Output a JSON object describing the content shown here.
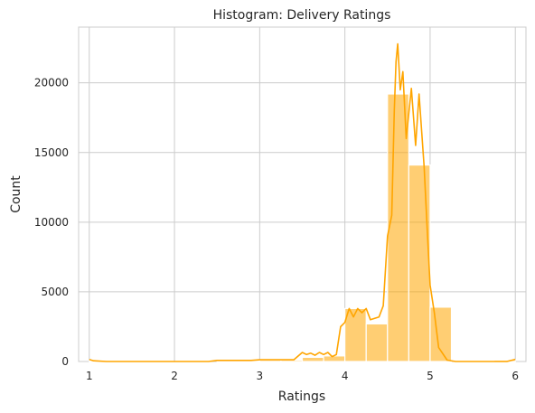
{
  "chart_data": {
    "type": "bar",
    "title": "Histogram: Delivery Ratings",
    "xlabel": "Ratings",
    "ylabel": "Count",
    "xlim": [
      0.875,
      6.125
    ],
    "ylim": [
      0,
      24000
    ],
    "xticks": [
      1,
      2,
      3,
      4,
      5,
      6
    ],
    "yticks": [
      0,
      5000,
      10000,
      15000,
      20000
    ],
    "grid": true,
    "bar_color": "#ffa500",
    "kde_color": "#ffa500",
    "bins": [
      {
        "x0": 1.0,
        "x1": 1.25,
        "count": 60
      },
      {
        "x0": 1.25,
        "x1": 1.5,
        "count": 0
      },
      {
        "x0": 1.5,
        "x1": 1.75,
        "count": 0
      },
      {
        "x0": 1.75,
        "x1": 2.0,
        "count": 0
      },
      {
        "x0": 2.0,
        "x1": 2.25,
        "count": 0
      },
      {
        "x0": 2.25,
        "x1": 2.5,
        "count": 0
      },
      {
        "x0": 2.5,
        "x1": 2.75,
        "count": 80
      },
      {
        "x0": 2.75,
        "x1": 3.0,
        "count": 80
      },
      {
        "x0": 3.0,
        "x1": 3.25,
        "count": 100
      },
      {
        "x0": 3.25,
        "x1": 3.5,
        "count": 100
      },
      {
        "x0": 3.5,
        "x1": 3.75,
        "count": 300
      },
      {
        "x0": 3.75,
        "x1": 4.0,
        "count": 400
      },
      {
        "x0": 4.0,
        "x1": 4.25,
        "count": 3800
      },
      {
        "x0": 4.25,
        "x1": 4.5,
        "count": 2700
      },
      {
        "x0": 4.5,
        "x1": 4.75,
        "count": 19200
      },
      {
        "x0": 4.75,
        "x1": 5.0,
        "count": 14100
      },
      {
        "x0": 5.0,
        "x1": 5.25,
        "count": 3900
      },
      {
        "x0": 5.25,
        "x1": 5.5,
        "count": 0
      },
      {
        "x0": 5.5,
        "x1": 5.75,
        "count": 0
      },
      {
        "x0": 5.75,
        "x1": 6.0,
        "count": 100
      }
    ],
    "kde": [
      [
        1.0,
        150
      ],
      [
        1.05,
        50
      ],
      [
        1.2,
        0
      ],
      [
        2.4,
        0
      ],
      [
        2.5,
        80
      ],
      [
        2.9,
        80
      ],
      [
        3.0,
        120
      ],
      [
        3.4,
        120
      ],
      [
        3.5,
        650
      ],
      [
        3.55,
        500
      ],
      [
        3.6,
        600
      ],
      [
        3.65,
        450
      ],
      [
        3.7,
        650
      ],
      [
        3.75,
        500
      ],
      [
        3.8,
        650
      ],
      [
        3.85,
        350
      ],
      [
        3.9,
        500
      ],
      [
        3.95,
        2500
      ],
      [
        4.0,
        2800
      ],
      [
        4.05,
        3800
      ],
      [
        4.1,
        3200
      ],
      [
        4.15,
        3800
      ],
      [
        4.2,
        3500
      ],
      [
        4.25,
        3800
      ],
      [
        4.3,
        3000
      ],
      [
        4.4,
        3200
      ],
      [
        4.45,
        4000
      ],
      [
        4.5,
        9000
      ],
      [
        4.55,
        10500
      ],
      [
        4.58,
        18000
      ],
      [
        4.6,
        21500
      ],
      [
        4.62,
        22800
      ],
      [
        4.65,
        19500
      ],
      [
        4.68,
        20800
      ],
      [
        4.72,
        16000
      ],
      [
        4.78,
        19600
      ],
      [
        4.83,
        15500
      ],
      [
        4.87,
        19200
      ],
      [
        4.93,
        14000
      ],
      [
        4.97,
        9000
      ],
      [
        5.0,
        5500
      ],
      [
        5.05,
        3500
      ],
      [
        5.1,
        1000
      ],
      [
        5.2,
        100
      ],
      [
        5.3,
        0
      ],
      [
        5.9,
        0
      ],
      [
        6.0,
        150
      ]
    ]
  }
}
